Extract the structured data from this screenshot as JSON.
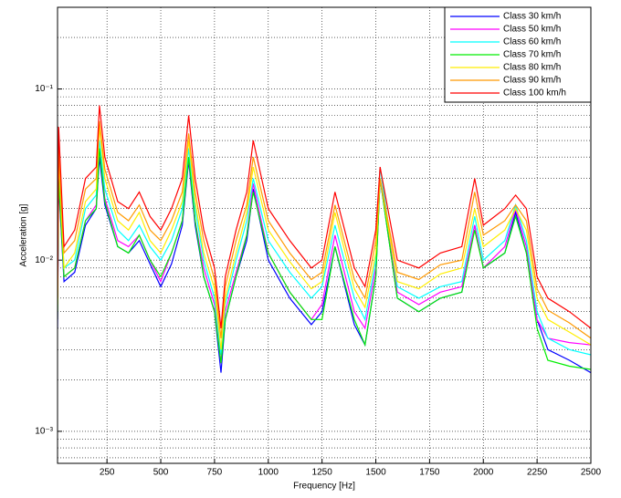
{
  "chart_data": {
    "type": "line",
    "xlabel": "Frequency [Hz]",
    "ylabel": "Acceleration [g]",
    "x": [
      20,
      25,
      50,
      100,
      150,
      200,
      215,
      240,
      300,
      350,
      400,
      450,
      500,
      550,
      600,
      630,
      660,
      700,
      750,
      780,
      800,
      850,
      900,
      930,
      1000,
      1100,
      1200,
      1250,
      1310,
      1400,
      1450,
      1500,
      1520,
      1600,
      1700,
      1800,
      1900,
      1960,
      2000,
      2100,
      2150,
      2200,
      2250,
      2300,
      2400,
      2500
    ],
    "series": [
      {
        "name": "Class 30 km/h",
        "color": "#0000ff",
        "values": [
          0.004,
          0.028,
          0.0075,
          0.0085,
          0.016,
          0.02,
          0.04,
          0.021,
          0.012,
          0.011,
          0.013,
          0.0095,
          0.007,
          0.0095,
          0.016,
          0.038,
          0.016,
          0.008,
          0.005,
          0.0022,
          0.0045,
          0.008,
          0.013,
          0.026,
          0.01,
          0.006,
          0.0042,
          0.005,
          0.012,
          0.0042,
          0.0032,
          0.008,
          0.03,
          0.006,
          0.005,
          0.006,
          0.0065,
          0.016,
          0.009,
          0.011,
          0.019,
          0.011,
          0.0045,
          0.003,
          0.0026,
          0.0022
        ]
      },
      {
        "name": "Class 50 km/h",
        "color": "#ff00ff",
        "values": [
          0.0045,
          0.03,
          0.008,
          0.009,
          0.017,
          0.021,
          0.045,
          0.023,
          0.013,
          0.012,
          0.014,
          0.01,
          0.0075,
          0.011,
          0.017,
          0.04,
          0.017,
          0.009,
          0.0055,
          0.0025,
          0.005,
          0.0085,
          0.014,
          0.028,
          0.011,
          0.0065,
          0.0045,
          0.0055,
          0.014,
          0.005,
          0.004,
          0.009,
          0.03,
          0.0065,
          0.0055,
          0.0065,
          0.007,
          0.016,
          0.009,
          0.012,
          0.02,
          0.012,
          0.0045,
          0.0035,
          0.0033,
          0.0032
        ]
      },
      {
        "name": "Class 60 km/h",
        "color": "#00ffff",
        "values": [
          0.005,
          0.035,
          0.009,
          0.01,
          0.02,
          0.024,
          0.05,
          0.026,
          0.015,
          0.013,
          0.016,
          0.012,
          0.01,
          0.013,
          0.02,
          0.045,
          0.02,
          0.01,
          0.006,
          0.0028,
          0.0055,
          0.01,
          0.017,
          0.03,
          0.013,
          0.0085,
          0.006,
          0.007,
          0.016,
          0.006,
          0.0045,
          0.01,
          0.035,
          0.007,
          0.006,
          0.007,
          0.0075,
          0.018,
          0.01,
          0.013,
          0.021,
          0.013,
          0.005,
          0.0035,
          0.003,
          0.0028
        ]
      },
      {
        "name": "Class 70 km/h",
        "color": "#00ee00",
        "values": [
          0.0045,
          0.03,
          0.008,
          0.009,
          0.017,
          0.02,
          0.045,
          0.022,
          0.012,
          0.011,
          0.014,
          0.01,
          0.008,
          0.011,
          0.017,
          0.04,
          0.017,
          0.008,
          0.005,
          0.0025,
          0.0045,
          0.008,
          0.014,
          0.025,
          0.011,
          0.0065,
          0.0045,
          0.0045,
          0.012,
          0.0045,
          0.0032,
          0.008,
          0.03,
          0.006,
          0.005,
          0.006,
          0.0065,
          0.015,
          0.009,
          0.011,
          0.018,
          0.011,
          0.004,
          0.0026,
          0.0024,
          0.0023
        ]
      },
      {
        "name": "Class 80 km/h",
        "color": "#ffee00",
        "values": [
          0.005,
          0.04,
          0.009,
          0.011,
          0.022,
          0.026,
          0.06,
          0.03,
          0.017,
          0.015,
          0.019,
          0.013,
          0.011,
          0.015,
          0.022,
          0.05,
          0.022,
          0.011,
          0.0068,
          0.003,
          0.006,
          0.011,
          0.019,
          0.035,
          0.015,
          0.0098,
          0.0068,
          0.0075,
          0.019,
          0.0068,
          0.0053,
          0.011,
          0.03,
          0.0075,
          0.0068,
          0.0083,
          0.009,
          0.02,
          0.012,
          0.015,
          0.02,
          0.015,
          0.006,
          0.0045,
          0.0038,
          0.0032
        ]
      },
      {
        "name": "Class 90 km/h",
        "color": "#ff9900",
        "values": [
          0.0055,
          0.045,
          0.011,
          0.013,
          0.026,
          0.03,
          0.065,
          0.034,
          0.019,
          0.017,
          0.021,
          0.015,
          0.013,
          0.017,
          0.025,
          0.055,
          0.025,
          0.013,
          0.0077,
          0.0035,
          0.007,
          0.013,
          0.021,
          0.04,
          0.017,
          0.011,
          0.0077,
          0.0085,
          0.021,
          0.0077,
          0.006,
          0.013,
          0.03,
          0.0085,
          0.0077,
          0.0094,
          0.01,
          0.025,
          0.014,
          0.017,
          0.021,
          0.017,
          0.0068,
          0.0051,
          0.0043,
          0.0035
        ]
      },
      {
        "name": "Class 100 km/h",
        "color": "#ff0000",
        "values": [
          0.006,
          0.06,
          0.012,
          0.015,
          0.03,
          0.035,
          0.08,
          0.04,
          0.022,
          0.02,
          0.025,
          0.018,
          0.015,
          0.02,
          0.03,
          0.07,
          0.03,
          0.015,
          0.009,
          0.004,
          0.008,
          0.015,
          0.025,
          0.05,
          0.02,
          0.013,
          0.009,
          0.01,
          0.025,
          0.009,
          0.007,
          0.015,
          0.035,
          0.01,
          0.009,
          0.011,
          0.012,
          0.03,
          0.016,
          0.02,
          0.024,
          0.02,
          0.008,
          0.006,
          0.005,
          0.004
        ]
      }
    ],
    "xlim": [
      20,
      2500
    ],
    "xticks": [
      250,
      500,
      750,
      1000,
      1250,
      1500,
      1750,
      2000,
      2250,
      2500
    ],
    "ylim": [
      0.00065,
      0.3
    ],
    "ylog": true,
    "yticks": [
      {
        "value": 0.001,
        "label": "10⁻³"
      },
      {
        "value": 0.01,
        "label": "10⁻²"
      },
      {
        "value": 0.1,
        "label": "10⁻¹"
      }
    ],
    "y_minor_ticks": [
      0.0007,
      0.0008,
      0.0009,
      0.002,
      0.003,
      0.004,
      0.005,
      0.006,
      0.007,
      0.008,
      0.009,
      0.02,
      0.03,
      0.04,
      0.05,
      0.06,
      0.07,
      0.08,
      0.09,
      0.2
    ],
    "grid": true,
    "legend": "top-right"
  }
}
